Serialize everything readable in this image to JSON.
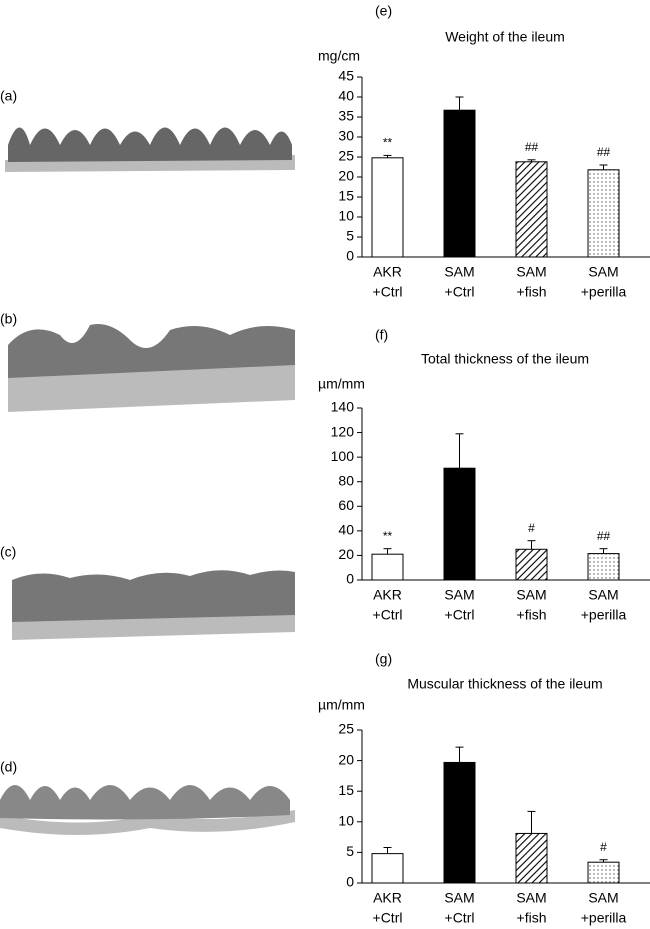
{
  "image_panels": [
    "(a)",
    "(b)",
    "(c)",
    "(d)"
  ],
  "chart_data": [
    {
      "type": "bar",
      "panel": "(e)",
      "title": "Weight of the ileum",
      "y_unit": "mg/cm",
      "categories": [
        [
          "AKR",
          "+Ctrl"
        ],
        [
          "SAM",
          "+Ctrl"
        ],
        [
          "SAM",
          "+fish"
        ],
        [
          "SAM",
          "+perilla"
        ]
      ],
      "values": [
        24.8,
        36.7,
        23.8,
        21.8
      ],
      "errors": [
        0.6,
        3.3,
        0.5,
        1.2
      ],
      "annotations": [
        "**",
        null,
        "##",
        "##"
      ],
      "fills": [
        "white",
        "black",
        "hatch",
        "dots"
      ],
      "ylim": [
        0,
        45
      ],
      "yticks": [
        0,
        5,
        10,
        15,
        20,
        25,
        30,
        35,
        40,
        45
      ]
    },
    {
      "type": "bar",
      "panel": "(f)",
      "title": "Total thickness of the ileum",
      "y_unit": "µm/mm",
      "categories": [
        [
          "AKR",
          "+Ctrl"
        ],
        [
          "SAM",
          "+Ctrl"
        ],
        [
          "SAM",
          "+fish"
        ],
        [
          "SAM",
          "+perilla"
        ]
      ],
      "values": [
        21,
        91,
        25,
        21.5
      ],
      "errors": [
        4.5,
        28,
        7,
        4
      ],
      "annotations": [
        "**",
        null,
        "#",
        "##"
      ],
      "fills": [
        "white",
        "black",
        "hatch",
        "dots"
      ],
      "ylim": [
        0,
        140
      ],
      "yticks": [
        0,
        20,
        40,
        60,
        80,
        100,
        120,
        140
      ]
    },
    {
      "type": "bar",
      "panel": "(g)",
      "title": "Muscular thickness of the ileum",
      "y_unit": "µm/mm",
      "categories": [
        [
          "AKR",
          "+Ctrl"
        ],
        [
          "SAM",
          "+Ctrl"
        ],
        [
          "SAM",
          "+fish"
        ],
        [
          "SAM",
          "+perilla"
        ]
      ],
      "values": [
        4.8,
        19.7,
        8.1,
        3.4
      ],
      "errors": [
        1,
        2.5,
        3.6,
        0.4
      ],
      "annotations": [
        null,
        null,
        null,
        "#"
      ],
      "fills": [
        "white",
        "black",
        "hatch",
        "dots"
      ],
      "ylim": [
        0,
        25
      ],
      "yticks": [
        0,
        5,
        10,
        15,
        20,
        25
      ]
    }
  ]
}
